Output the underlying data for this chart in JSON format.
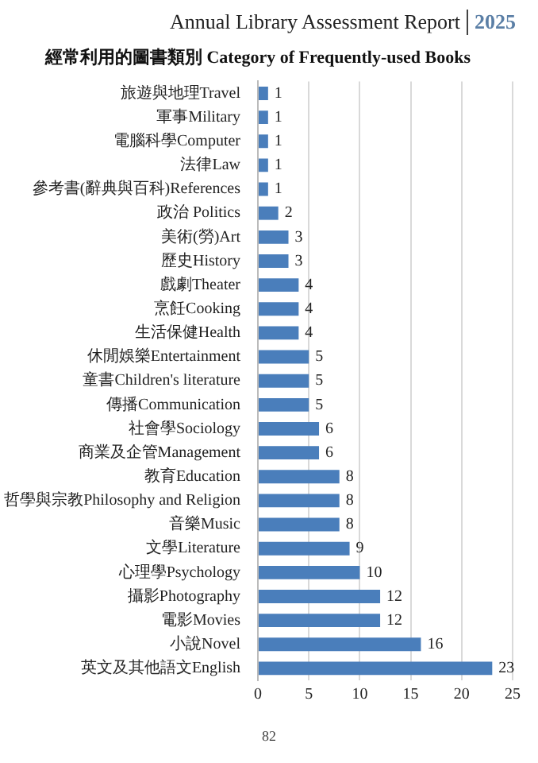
{
  "chart_data": {
    "type": "bar",
    "orientation": "horizontal",
    "title": "經常利用的圖書類別 Category of Frequently-used Books",
    "categories": [
      "旅遊與地理Travel",
      "軍事Military",
      "電腦科學Computer",
      "法律Law",
      "參考書(辭典與百科)References",
      "政治 Politics",
      "美術(勞)Art",
      "歷史History",
      "戲劇Theater",
      "烹飪Cooking",
      "生活保健Health",
      "休閒娛樂Entertainment",
      "童書Children's literature",
      "傳播Communication",
      "社會學Sociology",
      "商業及企管Management",
      "教育Education",
      "哲學與宗教Philosophy and Religion",
      "音樂Music",
      "文學Literature",
      "心理學Psychology",
      "攝影Photography",
      "電影Movies",
      "小說Novel",
      "英文及其他語文English"
    ],
    "values": [
      1,
      1,
      1,
      1,
      1,
      2,
      3,
      3,
      4,
      4,
      4,
      5,
      5,
      5,
      6,
      6,
      8,
      8,
      8,
      9,
      10,
      12,
      12,
      16,
      23
    ],
    "color": "#4a7ebb",
    "xlim": [
      0,
      25
    ],
    "xticks": [
      0,
      5,
      10,
      15,
      20,
      25
    ],
    "grid": "x",
    "data_labels": true,
    "legend": false,
    "annotations": [
      "Annual Library Assessment Report",
      "2025",
      "82"
    ]
  }
}
